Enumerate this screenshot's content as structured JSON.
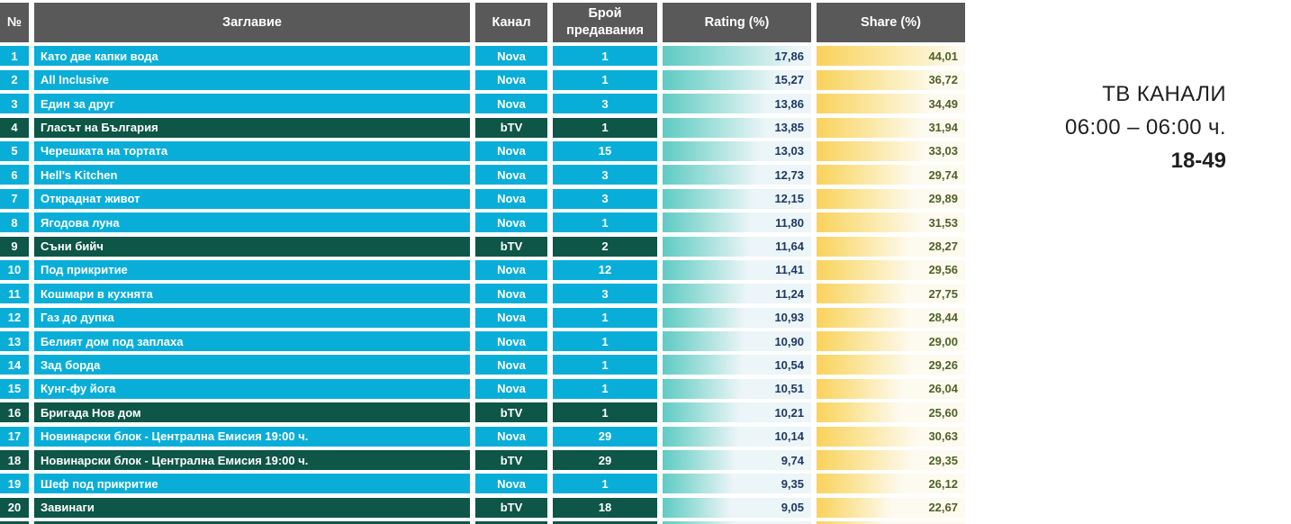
{
  "side_panel": {
    "line1": "ТВ КАНАЛИ",
    "line2": "06:00 – 06:00 ч.",
    "line3": "18-49"
  },
  "colors": {
    "header_bg": "#595959",
    "nova_row": "#09AED8",
    "btv_row": "#0E5647",
    "rating_bar": "#5FCBC4",
    "share_bar": "#F9D25B",
    "rating_text": "#1F3864",
    "share_text": "#4F6228"
  },
  "chart_data": {
    "type": "table",
    "title": "ТВ КАНАЛИ 06:00 – 06:00 ч. 18-49",
    "columns": [
      "№",
      "Заглавие",
      "Канал",
      "Брой предавания",
      "Rating (%)",
      "Share (%)"
    ],
    "rating_axis_max": 17.86,
    "share_axis_max": 44.01,
    "decimal_separator": ",",
    "rows": [
      {
        "no": 1,
        "title": "Като две капки вода",
        "channel": "Nova",
        "broadcasts": 1,
        "rating": 17.86,
        "share": 44.01
      },
      {
        "no": 2,
        "title": "All Inclusive",
        "channel": "Nova",
        "broadcasts": 1,
        "rating": 15.27,
        "share": 36.72
      },
      {
        "no": 3,
        "title": "Един за друг",
        "channel": "Nova",
        "broadcasts": 3,
        "rating": 13.86,
        "share": 34.49
      },
      {
        "no": 4,
        "title": "Гласът на България",
        "channel": "bTV",
        "broadcasts": 1,
        "rating": 13.85,
        "share": 31.94
      },
      {
        "no": 5,
        "title": "Черешката на тортата",
        "channel": "Nova",
        "broadcasts": 15,
        "rating": 13.03,
        "share": 33.03
      },
      {
        "no": 6,
        "title": "Hell's Kitchen",
        "channel": "Nova",
        "broadcasts": 3,
        "rating": 12.73,
        "share": 29.74
      },
      {
        "no": 7,
        "title": "Откраднат живот",
        "channel": "Nova",
        "broadcasts": 3,
        "rating": 12.15,
        "share": 29.89
      },
      {
        "no": 8,
        "title": "Ягодова луна",
        "channel": "Nova",
        "broadcasts": 1,
        "rating": 11.8,
        "share": 31.53
      },
      {
        "no": 9,
        "title": "Съни бийч",
        "channel": "bTV",
        "broadcasts": 2,
        "rating": 11.64,
        "share": 28.27
      },
      {
        "no": 10,
        "title": "Под прикритие",
        "channel": "Nova",
        "broadcasts": 12,
        "rating": 11.41,
        "share": 29.56
      },
      {
        "no": 11,
        "title": "Кошмари в кухнята",
        "channel": "Nova",
        "broadcasts": 3,
        "rating": 11.24,
        "share": 27.75
      },
      {
        "no": 12,
        "title": "Газ до дупка",
        "channel": "Nova",
        "broadcasts": 1,
        "rating": 10.93,
        "share": 28.44
      },
      {
        "no": 13,
        "title": "Белият дом под заплаха",
        "channel": "Nova",
        "broadcasts": 1,
        "rating": 10.9,
        "share": 29.0
      },
      {
        "no": 14,
        "title": "Зад борда",
        "channel": "Nova",
        "broadcasts": 1,
        "rating": 10.54,
        "share": 29.26
      },
      {
        "no": 15,
        "title": "Кунг-фу йога",
        "channel": "Nova",
        "broadcasts": 1,
        "rating": 10.51,
        "share": 26.04
      },
      {
        "no": 16,
        "title": "Бригада Нов дом",
        "channel": "bTV",
        "broadcasts": 1,
        "rating": 10.21,
        "share": 25.6
      },
      {
        "no": 17,
        "title": "Новинарски блок - Централна Емисия 19:00 ч.",
        "channel": "Nova",
        "broadcasts": 29,
        "rating": 10.14,
        "share": 30.63
      },
      {
        "no": 18,
        "title": "Новинарски блок - Централна Емисия 19:00 ч.",
        "channel": "bTV",
        "broadcasts": 29,
        "rating": 9.74,
        "share": 29.35
      },
      {
        "no": 19,
        "title": "Шеф под прикритие",
        "channel": "Nova",
        "broadcasts": 1,
        "rating": 9.35,
        "share": 26.12
      },
      {
        "no": 20,
        "title": "Завинаги",
        "channel": "bTV",
        "broadcasts": 18,
        "rating": 9.05,
        "share": 22.67
      }
    ],
    "partial_row": {
      "channel": "bTV",
      "visible": "clipped at bottom edge"
    }
  }
}
